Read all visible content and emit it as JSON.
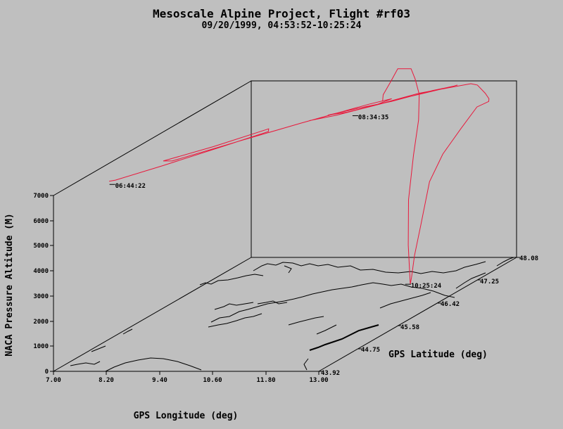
{
  "chart_data": {
    "type": "line3d",
    "title": "Mesoscale Alpine Project, Flight #rf03",
    "subtitle": "09/20/1999, 04:53:52-10:25:24",
    "xlabel": "GPS Longitude (deg)",
    "ylabel": "GPS Latitude (deg)",
    "zlabel": "NACA Pressure Altitude (M)",
    "x_ticks": [
      "7.00",
      "8.20",
      "9.40",
      "10.60",
      "11.80",
      "13.00"
    ],
    "y_ticks": [
      "43.92",
      "44.75",
      "45.58",
      "46.42",
      "47.25",
      "48.08"
    ],
    "z_ticks": [
      "0",
      "1000",
      "2000",
      "3000",
      "4000",
      "5000",
      "6000",
      "7000"
    ],
    "xlim": [
      7.0,
      13.0
    ],
    "ylim": [
      43.92,
      48.08
    ],
    "zlim": [
      0,
      7000
    ],
    "series_color": "#e8193c",
    "annotations": [
      {
        "text": "06:44:22",
        "x": 7.6,
        "y": 44.6,
        "z": 6700
      },
      {
        "text": "08:34:35",
        "x": 10.3,
        "y": 47.2,
        "z": 6600
      },
      {
        "text": "10:25:24",
        "x": 11.6,
        "y": 47.1,
        "z": 0
      }
    ],
    "flight_track": [
      [
        7.55,
        44.58,
        6850
      ],
      [
        7.65,
        44.62,
        6850
      ],
      [
        8.2,
        45.1,
        6900
      ],
      [
        8.8,
        45.7,
        6950
      ],
      [
        9.3,
        46.3,
        6950
      ],
      [
        9.2,
        46.4,
        6950
      ],
      [
        8.6,
        45.8,
        6900
      ],
      [
        8.0,
        45.3,
        6870
      ],
      [
        8.2,
        45.3,
        6870
      ],
      [
        8.9,
        45.9,
        6920
      ],
      [
        9.7,
        46.6,
        6950
      ],
      [
        10.5,
        47.3,
        6950
      ],
      [
        10.8,
        47.5,
        6950
      ],
      [
        10.7,
        47.3,
        6950
      ],
      [
        10.2,
        46.9,
        6950
      ],
      [
        9.8,
        46.7,
        6950
      ],
      [
        10.2,
        46.9,
        6950
      ],
      [
        10.6,
        47.2,
        6950
      ],
      [
        10.3,
        47.0,
        6950
      ],
      [
        10.0,
        46.9,
        6950
      ],
      [
        10.5,
        47.2,
        6950
      ],
      [
        10.9,
        47.4,
        6950
      ],
      [
        11.4,
        47.8,
        6950
      ],
      [
        11.7,
        47.95,
        6950
      ],
      [
        11.75,
        48.0,
        6950
      ],
      [
        11.7,
        47.95,
        6950
      ],
      [
        11.0,
        47.5,
        6950
      ],
      [
        10.6,
        47.2,
        6950
      ],
      [
        11.2,
        47.7,
        6950
      ],
      [
        12.0,
        48.05,
        6950
      ],
      [
        12.2,
        48.0,
        6950
      ],
      [
        12.7,
        47.7,
        6950
      ],
      [
        13.0,
        47.5,
        6950
      ],
      [
        13.1,
        47.4,
        6950
      ],
      [
        13.05,
        47.2,
        6950
      ],
      [
        12.9,
        47.0,
        6300
      ],
      [
        12.6,
        46.9,
        5400
      ],
      [
        12.3,
        46.9,
        4300
      ],
      [
        12.0,
        47.0,
        2500
      ],
      [
        11.8,
        47.05,
        1200
      ],
      [
        11.7,
        47.08,
        300
      ],
      [
        11.65,
        47.1,
        0
      ],
      [
        11.55,
        47.15,
        1500
      ],
      [
        11.45,
        47.25,
        3200
      ],
      [
        11.4,
        47.4,
        4800
      ],
      [
        11.3,
        47.6,
        6000
      ],
      [
        11.1,
        47.8,
        6800
      ],
      [
        10.9,
        47.9,
        7300
      ],
      [
        10.7,
        48.0,
        7600
      ],
      [
        10.4,
        48.0,
        7600
      ],
      [
        10.35,
        47.9,
        7200
      ],
      [
        10.5,
        47.6,
        7000
      ],
      [
        10.7,
        47.4,
        6950
      ]
    ]
  }
}
